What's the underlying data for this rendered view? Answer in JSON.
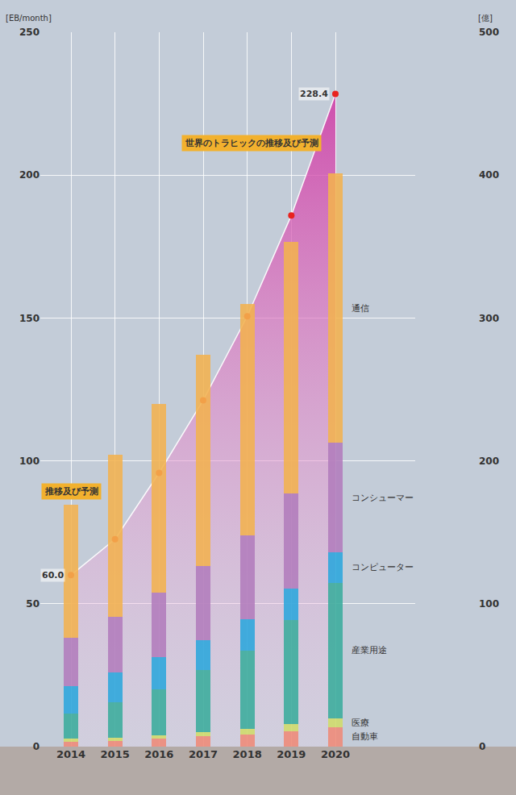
{
  "chart_data": {
    "type": "bar",
    "stacked": true,
    "grid": true,
    "categories": [
      "2014",
      "2015",
      "2016",
      "2017",
      "2018",
      "2019",
      "2020"
    ],
    "ylabel": "[EB/month]",
    "y2label": "[億]",
    "ylim": [
      0,
      250
    ],
    "yticks": [
      0,
      50,
      100,
      150,
      200,
      250
    ],
    "y2lim": [
      0,
      500
    ],
    "y2ticks": [
      0,
      100,
      200,
      300,
      400,
      500
    ],
    "annotations": [
      "推移及び予測"
    ],
    "series": [
      {
        "name": "自動車",
        "color": "#ee8a78",
        "axis": "y2",
        "values": [
          3.4,
          4.0,
          5.6,
          7.3,
          8.5,
          10.7,
          13.6
        ]
      },
      {
        "name": "医療",
        "color": "#cfdc6a",
        "axis": "y2",
        "values": [
          2.3,
          2.3,
          2.3,
          2.8,
          4.0,
          5.1,
          6.2
        ]
      },
      {
        "name": "産業用途",
        "color": "#3aac9c",
        "axis": "y2",
        "values": [
          17.5,
          24.9,
          32.2,
          43.5,
          54.8,
          72.9,
          94.9
        ]
      },
      {
        "name": "コンピューター",
        "color": "#2ba6dc",
        "axis": "y2",
        "values": [
          19.2,
          20.9,
          22.6,
          20.9,
          22.0,
          22.0,
          21.5
        ]
      },
      {
        "name": "コンシューマー",
        "color": "#b27cbc",
        "axis": "y2",
        "values": [
          33.9,
          39.0,
          45.2,
          52.0,
          58.8,
          66.7,
          76.3
        ]
      },
      {
        "name": "通信",
        "color": "#f2b24e",
        "axis": "y2",
        "values": [
          93.2,
          113.0,
          132.2,
          147.5,
          161.6,
          175.7,
          188.7
        ]
      },
      {
        "name": "世界のトラヒックの推移及び予測",
        "type": "line",
        "marker": "circle",
        "color": "#d03ca6",
        "values": [
          60.0,
          72.6,
          95.8,
          121.2,
          150.6,
          185.9,
          228.4
        ],
        "value_labels": [
          "60.0",
          null,
          null,
          null,
          null,
          null,
          "228.4"
        ]
      }
    ]
  }
}
